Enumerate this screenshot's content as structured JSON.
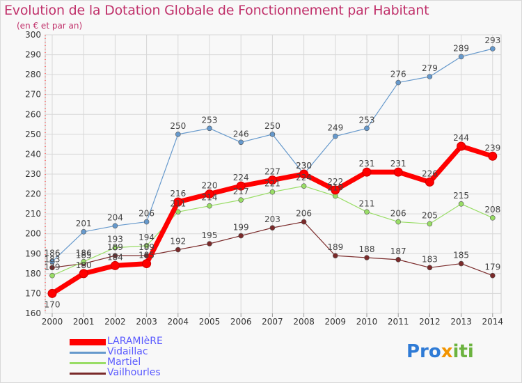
{
  "chart_data": {
    "type": "line",
    "title": "Evolution de la Dotation Globale de Fonctionnement par Habitant",
    "subtitle": "(en € et par an)",
    "x": [
      "2000",
      "2001",
      "2002",
      "2003",
      "2004",
      "2005",
      "2006",
      "2007",
      "2008",
      "2009",
      "2010",
      "2011",
      "2012",
      "2013",
      "2014"
    ],
    "ylim": [
      160,
      300
    ],
    "yticks": [
      160,
      170,
      180,
      190,
      200,
      210,
      220,
      230,
      240,
      250,
      260,
      270,
      280,
      290,
      300
    ],
    "grid": true,
    "legend_position": "bottom-left",
    "series": [
      {
        "name": "LARAMIèRE",
        "color": "#ff0000",
        "values": [
          170,
          180,
          184,
          185,
          216,
          220,
          224,
          227,
          230,
          222,
          231,
          231,
          226,
          244,
          239
        ]
      },
      {
        "name": "Vidaillac",
        "color": "#6699cc",
        "values": [
          186,
          201,
          204,
          206,
          250,
          253,
          246,
          250,
          230,
          249,
          253,
          276,
          279,
          289,
          293
        ]
      },
      {
        "name": "Martiel",
        "color": "#99dd66",
        "values": [
          179,
          186,
          193,
          194,
          211,
          214,
          217,
          221,
          224,
          219,
          211,
          206,
          205,
          215,
          208
        ]
      },
      {
        "name": "Vailhourles",
        "color": "#7a2a2a",
        "values": [
          183,
          185,
          189,
          189,
          192,
          195,
          199,
          203,
          206,
          189,
          188,
          187,
          183,
          185,
          179
        ]
      }
    ]
  },
  "logo": {
    "part1": "Pro",
    "part2": "x",
    "part3": "iti"
  }
}
